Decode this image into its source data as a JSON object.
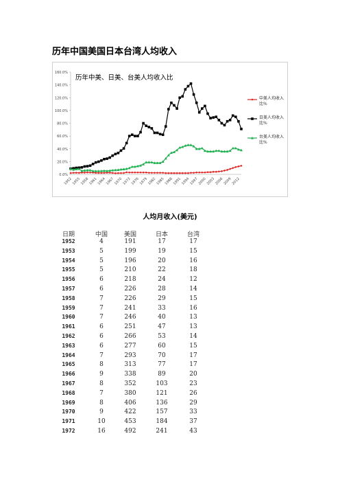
{
  "title": "历年中国美国日本台湾人均收入",
  "chart_data": {
    "type": "line",
    "title": "历年中美、日美、台美人均收入比",
    "categories": [
      "1952",
      null,
      null,
      "1955",
      null,
      null,
      "1958",
      null,
      null,
      "1961",
      null,
      null,
      "1964",
      null,
      null,
      "1967",
      null,
      null,
      "1970",
      null,
      null,
      "1973",
      null,
      null,
      "1976",
      null,
      null,
      "1979",
      null,
      null,
      "1982",
      null,
      null,
      "1985",
      null,
      null,
      "1988",
      null,
      null,
      "1991",
      null,
      null,
      "1994",
      null,
      null,
      "1997",
      null,
      null,
      "2000",
      null,
      null,
      "2003",
      null,
      null,
      "2006",
      null,
      null,
      "2009",
      null,
      null,
      "2012",
      null
    ],
    "ylim": [
      0,
      160
    ],
    "yticks": [
      {
        "value": 0,
        "label": "0.0%"
      },
      {
        "value": 20,
        "label": "20.0%"
      },
      {
        "value": 40,
        "label": "40.0%"
      },
      {
        "value": 60,
        "label": "60.0%"
      },
      {
        "value": 80,
        "label": "80.0%"
      },
      {
        "value": 100,
        "label": "100.0%"
      },
      {
        "value": 120,
        "label": "120.0%"
      },
      {
        "value": 140,
        "label": "140.0%"
      },
      {
        "value": 160,
        "label": "160.0%"
      }
    ],
    "legend": "right",
    "series": [
      {
        "name": "中美人均收入比%",
        "color": "#e02020",
        "marker": "diamond",
        "values": [
          2.1,
          2.5,
          2.6,
          2.4,
          2.8,
          2.7,
          3.1,
          2.9,
          2.8,
          2.4,
          2.3,
          2.2,
          2.4,
          2.6,
          2.7,
          2.3,
          1.8,
          2.0,
          2.1,
          2.2,
          3.3,
          3,
          3,
          3,
          3,
          3,
          3,
          3,
          2.5,
          2.5,
          2.5,
          2.5,
          2.5,
          2.5,
          2,
          2,
          2,
          2,
          2,
          2,
          2,
          2,
          2,
          2.5,
          2.5,
          3,
          3,
          3,
          3,
          3.5,
          3.5,
          4,
          4,
          4.5,
          5,
          6,
          7,
          8.5,
          10,
          11.5,
          12.5,
          13.5
        ]
      },
      {
        "name": "日美人均收入比%",
        "color": "#000000",
        "marker": "square",
        "values": [
          8.9,
          9.5,
          10.2,
          10.5,
          11.0,
          12.4,
          12.8,
          13.7,
          16.3,
          18.7,
          19.9,
          21.7,
          23.9,
          24.6,
          26.3,
          29.3,
          31.8,
          33.5,
          37.2,
          40.6,
          49.0,
          60,
          62,
          60,
          60,
          66,
          80,
          76,
          74,
          72,
          65,
          65,
          63,
          62,
          75,
          102,
          112,
          108,
          103,
          120,
          122,
          133,
          138,
          142,
          125,
          112,
          97,
          103,
          107,
          95,
          88,
          89,
          90,
          85,
          80,
          77,
          83,
          85,
          92,
          90,
          83,
          71
        ]
      },
      {
        "name": "台美人均收入比%",
        "color": "#20b050",
        "marker": "triangle",
        "values": [
          8.9,
          7.5,
          8.2,
          8.6,
          5.5,
          6.2,
          6.6,
          6.6,
          5.3,
          5.2,
          5.3,
          5.4,
          5.8,
          5.4,
          5.9,
          6.5,
          6.8,
          7.1,
          7.8,
          8.2,
          8.7,
          10,
          12,
          12,
          13,
          14,
          16,
          19,
          19,
          19,
          18,
          18,
          18,
          20,
          25,
          30,
          34,
          35,
          38,
          42,
          43,
          45,
          46,
          46,
          44,
          40,
          40,
          41,
          37,
          36,
          36,
          36,
          37,
          37,
          36,
          36,
          36,
          37,
          41,
          41,
          39,
          38
        ]
      }
    ]
  },
  "table": {
    "title": "人均月收入(美元)",
    "header": [
      "日期",
      "中国",
      "美国",
      "日本",
      "台湾"
    ],
    "rows": [
      [
        1952,
        4,
        191,
        17,
        17
      ],
      [
        1953,
        5,
        199,
        19,
        15
      ],
      [
        1954,
        5,
        196,
        20,
        16
      ],
      [
        1955,
        5,
        210,
        22,
        18
      ],
      [
        1956,
        6,
        218,
        24,
        12
      ],
      [
        1957,
        6,
        226,
        28,
        14
      ],
      [
        1958,
        7,
        226,
        29,
        15
      ],
      [
        1959,
        7,
        241,
        33,
        16
      ],
      [
        1960,
        7,
        246,
        40,
        13
      ],
      [
        1961,
        6,
        251,
        47,
        13
      ],
      [
        1962,
        6,
        266,
        53,
        14
      ],
      [
        1963,
        6,
        277,
        60,
        15
      ],
      [
        1964,
        7,
        293,
        70,
        17
      ],
      [
        1965,
        8,
        313,
        77,
        17
      ],
      [
        1966,
        9,
        338,
        89,
        20
      ],
      [
        1967,
        8,
        352,
        103,
        23
      ],
      [
        1968,
        7,
        380,
        121,
        26
      ],
      [
        1969,
        8,
        406,
        136,
        29
      ],
      [
        1970,
        9,
        422,
        157,
        33
      ],
      [
        1971,
        10,
        453,
        184,
        37
      ],
      [
        1972,
        16,
        492,
        241,
        43
      ]
    ]
  }
}
